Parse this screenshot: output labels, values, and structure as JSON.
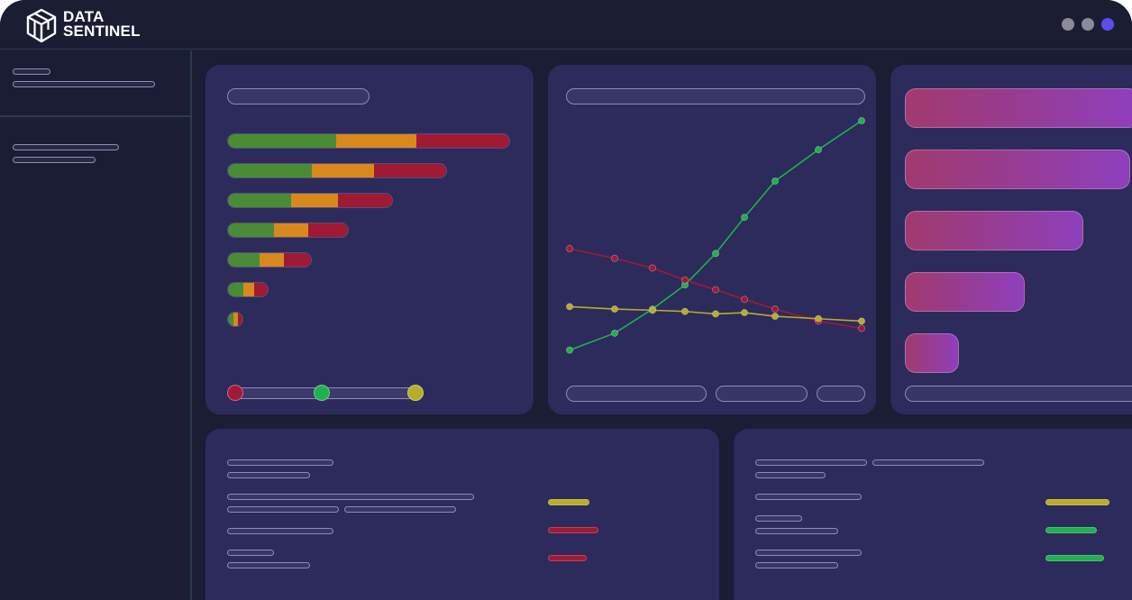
{
  "app": {
    "brand_line1": "DATA",
    "brand_line2": "SENTINEL",
    "icon": "cube-logo-icon"
  },
  "window_controls": [
    {
      "name": "minimize",
      "color": "#8a8a99"
    },
    {
      "name": "maximize",
      "color": "#8a8a99"
    },
    {
      "name": "close",
      "color": "#5b4de6"
    }
  ],
  "colors": {
    "background": "#1a1d33",
    "card": "#2d2a5c",
    "green": "#4a8c36",
    "orange": "#d9891c",
    "red": "#a11a35",
    "yellow": "#b7ad2a",
    "bright_green": "#20b04e",
    "gradient_start": "#a13a6e",
    "gradient_end": "#8e3fbc"
  },
  "stacked_bars": [
    {
      "green": 0.385,
      "orange": 0.285,
      "red": 0.33
    },
    {
      "green": 0.385,
      "orange": 0.285,
      "red": 0.33
    },
    {
      "green": 0.385,
      "orange": 0.285,
      "red": 0.33
    },
    {
      "green": 0.385,
      "orange": 0.285,
      "red": 0.33
    },
    {
      "green": 0.385,
      "orange": 0.285,
      "red": 0.33
    },
    {
      "green": 0.385,
      "orange": 0.285,
      "red": 0.33
    },
    {
      "green": 0.385,
      "orange": 0.285,
      "red": 0.33
    }
  ],
  "slider_knobs": [
    {
      "color": "#a11a35",
      "position": 0.0
    },
    {
      "color": "#20b04e",
      "position": 0.48
    },
    {
      "color": "#b7ad2a",
      "position": 1.0
    }
  ],
  "chart_data": {
    "type": "line",
    "x": [
      0,
      1,
      2,
      3,
      4,
      5,
      6,
      7,
      8
    ],
    "series": [
      {
        "color": "#20b04e",
        "values": [
          5,
          12,
          22,
          32,
          45,
          60,
          75,
          88,
          100
        ]
      },
      {
        "color": "#a11a35",
        "values": [
          47,
          43,
          39,
          34,
          30,
          26,
          22,
          17,
          14
        ]
      },
      {
        "color": "#b7ad2a",
        "values": [
          23,
          22,
          21.5,
          21,
          20,
          20.5,
          19,
          18,
          17
        ]
      }
    ],
    "ylim": [
      0,
      100
    ]
  },
  "gradient_bars": [
    1.0,
    0.96,
    0.76,
    0.51,
    0.23
  ],
  "status_indicators_left": [
    {
      "color": "#b7ad2a",
      "level": 0.22
    },
    {
      "color": "#a11a35",
      "level": 0.32
    },
    {
      "color": "#a11a35",
      "level": 0.19
    }
  ],
  "status_indicators_right": [
    {
      "color": "#b7ad2a",
      "level": 0.47
    },
    {
      "color": "#20b04e",
      "level": 0.33
    },
    {
      "color": "#20b04e",
      "level": 0.41
    }
  ]
}
